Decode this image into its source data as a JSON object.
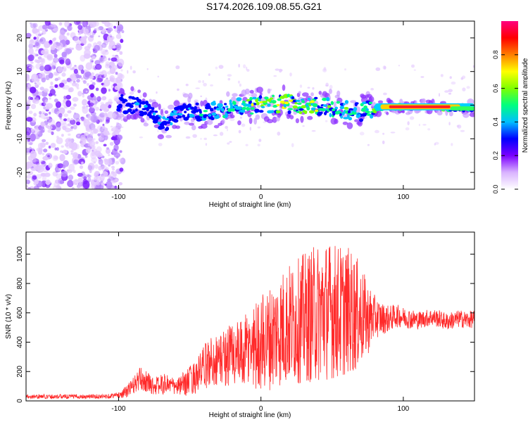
{
  "title": "S174.2026.109.08.55.G21",
  "chart_data": [
    {
      "type": "heatmap",
      "xlabel": "Height of straight line (km)",
      "ylabel": "Frequency (Hz)",
      "xlim": [
        -165,
        150
      ],
      "ylim": [
        -25,
        25
      ],
      "xticks": [
        -100,
        0,
        100
      ],
      "yticks": [
        -20,
        -10,
        0,
        10,
        20
      ],
      "xticklabels": [
        "-100",
        "0",
        "100"
      ],
      "yticklabels": [
        "-20",
        "-10",
        "0",
        "10",
        "20"
      ],
      "colorbar": {
        "label": "Normalized spectral amplitude",
        "range": [
          0,
          1
        ],
        "ticks": [
          0.0,
          0.2,
          0.4,
          0.6,
          0.8
        ],
        "ticklabels": [
          "0.0",
          "0.2",
          "0.4",
          "0.6",
          "0.8"
        ],
        "colors": [
          "#ffffff",
          "#d9b3ff",
          "#7b00ff",
          "#0000ff",
          "#00bfff",
          "#00ff7f",
          "#7fff00",
          "#ffff00",
          "#ff7f00",
          "#ff0000",
          "#ff007f"
        ]
      },
      "ridge": [
        {
          "x": -100,
          "f": 0.5,
          "a": 0.25
        },
        {
          "x": -90,
          "f": 0.0,
          "a": 0.3
        },
        {
          "x": -80,
          "f": -1.0,
          "a": 0.3
        },
        {
          "x": -67,
          "f": -6.0,
          "a": 0.35
        },
        {
          "x": -55,
          "f": -2.0,
          "a": 0.35
        },
        {
          "x": -40,
          "f": -2.0,
          "a": 0.4
        },
        {
          "x": -25,
          "f": -1.0,
          "a": 0.45
        },
        {
          "x": -10,
          "f": 0.0,
          "a": 0.5
        },
        {
          "x": 0,
          "f": 0.0,
          "a": 0.55
        },
        {
          "x": 15,
          "f": 0.5,
          "a": 0.6
        },
        {
          "x": 30,
          "f": 0.0,
          "a": 0.55
        },
        {
          "x": 45,
          "f": -0.5,
          "a": 0.5
        },
        {
          "x": 60,
          "f": -1.5,
          "a": 0.45
        },
        {
          "x": 70,
          "f": -2.0,
          "a": 0.4
        },
        {
          "x": 80,
          "f": -1.0,
          "a": 0.55
        },
        {
          "x": 90,
          "f": -0.5,
          "a": 0.85
        },
        {
          "x": 100,
          "f": -0.5,
          "a": 1.0
        },
        {
          "x": 115,
          "f": -0.5,
          "a": 1.0
        },
        {
          "x": 130,
          "f": -1.0,
          "a": 0.6
        },
        {
          "x": 150,
          "f": -1.0,
          "a": 0.45
        }
      ]
    },
    {
      "type": "line",
      "xlabel": "Height of straight line (km)",
      "ylabel": "SNR (10 * v/v)",
      "xlim": [
        -165,
        150
      ],
      "ylim": [
        0,
        1150
      ],
      "xticks": [
        -100,
        0,
        100
      ],
      "yticks": [
        0,
        200,
        400,
        600,
        800,
        1000
      ],
      "xticklabels": [
        "-100",
        "0",
        "100"
      ],
      "yticklabels": [
        "0",
        "200",
        "400",
        "600",
        "800",
        "1000"
      ],
      "series": [
        {
          "name": "SNR",
          "color": "#ff2a2a",
          "x": [
            -165,
            -150,
            -130,
            -110,
            -100,
            -95,
            -90,
            -85,
            -80,
            -75,
            -70,
            -65,
            -60,
            -55,
            -50,
            -45,
            -40,
            -35,
            -30,
            -25,
            -20,
            -15,
            -10,
            -5,
            0,
            5,
            10,
            15,
            20,
            25,
            30,
            35,
            40,
            45,
            50,
            55,
            60,
            65,
            70,
            75,
            80,
            85,
            90,
            95,
            100,
            105,
            110,
            115,
            120,
            125,
            130,
            135,
            140,
            145,
            150
          ],
          "y": [
            30,
            30,
            30,
            30,
            40,
            60,
            100,
            150,
            130,
            100,
            110,
            120,
            90,
            110,
            140,
            170,
            230,
            270,
            280,
            300,
            330,
            300,
            340,
            380,
            400,
            420,
            460,
            500,
            520,
            540,
            560,
            580,
            600,
            620,
            620,
            600,
            620,
            600,
            580,
            560,
            570,
            560,
            560,
            580,
            570,
            560,
            550,
            560,
            570,
            560,
            540,
            550,
            560,
            550,
            560
          ],
          "amp": [
            15,
            15,
            15,
            15,
            20,
            40,
            60,
            80,
            70,
            60,
            70,
            70,
            50,
            80,
            100,
            120,
            150,
            180,
            180,
            200,
            250,
            230,
            260,
            300,
            330,
            350,
            380,
            400,
            420,
            420,
            450,
            460,
            480,
            480,
            470,
            470,
            440,
            420,
            350,
            250,
            150,
            110,
            90,
            80,
            70,
            70,
            60,
            60,
            60,
            60,
            60,
            60,
            60,
            60,
            60
          ]
        }
      ]
    }
  ]
}
